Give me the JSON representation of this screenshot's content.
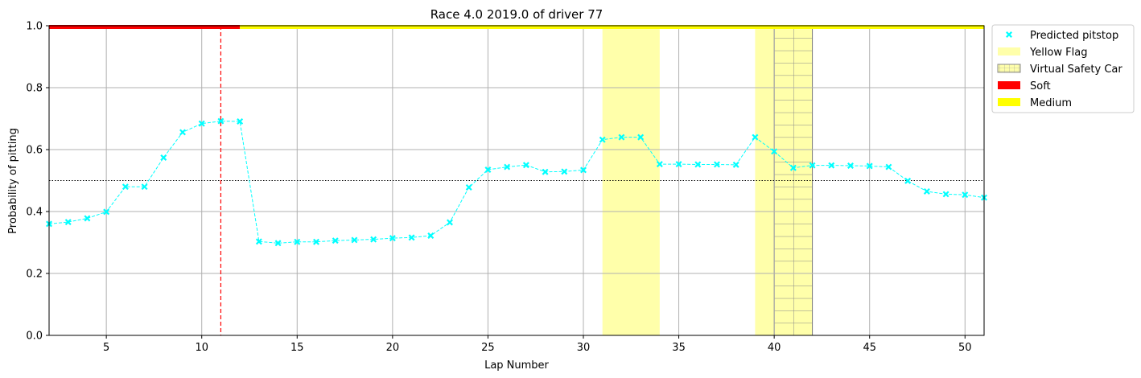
{
  "chart_data": {
    "type": "line",
    "title": "Race 4.0 2019.0 of driver 77",
    "xlabel": "Lap Number",
    "ylabel": "Probability of pitting",
    "xlim": [
      2,
      51
    ],
    "ylim": [
      0,
      1
    ],
    "xticks": [
      5,
      10,
      15,
      20,
      25,
      30,
      35,
      40,
      45,
      50
    ],
    "yticks": [
      0.0,
      0.2,
      0.4,
      0.6,
      0.8,
      1.0
    ],
    "ytick_labels": [
      "0.0",
      "0.2",
      "0.4",
      "0.6",
      "0.8",
      "1.0"
    ],
    "grid": true,
    "legend_position": "outside-top-right",
    "threshold": 0.5,
    "pitstop_lap": 11,
    "series": [
      {
        "name": "Predicted pitstop",
        "color": "#00ffff",
        "x": [
          2,
          3,
          4,
          5,
          6,
          7,
          8,
          9,
          10,
          11,
          12,
          13,
          14,
          15,
          16,
          17,
          18,
          19,
          20,
          21,
          22,
          23,
          24,
          25,
          26,
          27,
          28,
          29,
          30,
          31,
          32,
          33,
          34,
          35,
          36,
          37,
          38,
          39,
          40,
          41,
          42,
          43,
          44,
          45,
          46,
          47,
          48,
          49,
          50,
          51
        ],
        "y": [
          0.36,
          0.366,
          0.378,
          0.399,
          0.48,
          0.48,
          0.574,
          0.656,
          0.684,
          0.692,
          0.691,
          0.303,
          0.298,
          0.302,
          0.302,
          0.306,
          0.308,
          0.31,
          0.314,
          0.316,
          0.322,
          0.365,
          0.478,
          0.535,
          0.544,
          0.55,
          0.528,
          0.529,
          0.534,
          0.632,
          0.64,
          0.64,
          0.553,
          0.553,
          0.552,
          0.552,
          0.551,
          0.64,
          0.594,
          0.541,
          0.549,
          0.549,
          0.548,
          0.547,
          0.544,
          0.499,
          0.465,
          0.456,
          0.454,
          0.445
        ]
      }
    ],
    "yellow_flag_spans": [
      [
        31,
        34
      ],
      [
        39,
        40
      ]
    ],
    "vsc_spans": [
      [
        40,
        42
      ]
    ],
    "tyre_stints": [
      {
        "compound": "Soft",
        "color": "#ff0000",
        "start": 2,
        "end": 12
      },
      {
        "compound": "Medium",
        "color": "#ffff00",
        "start": 12,
        "end": 51
      }
    ],
    "legend": [
      {
        "label": "Predicted pitstop",
        "kind": "marker",
        "color": "#00ffff"
      },
      {
        "label": "Yellow Flag",
        "kind": "patch",
        "color": "#ffffaa"
      },
      {
        "label": "Virtual Safety Car",
        "kind": "hatch",
        "color": "#ffffaa"
      },
      {
        "label": "Soft",
        "kind": "patch",
        "color": "#ff0000"
      },
      {
        "label": "Medium",
        "kind": "patch",
        "color": "#ffff00"
      }
    ]
  }
}
